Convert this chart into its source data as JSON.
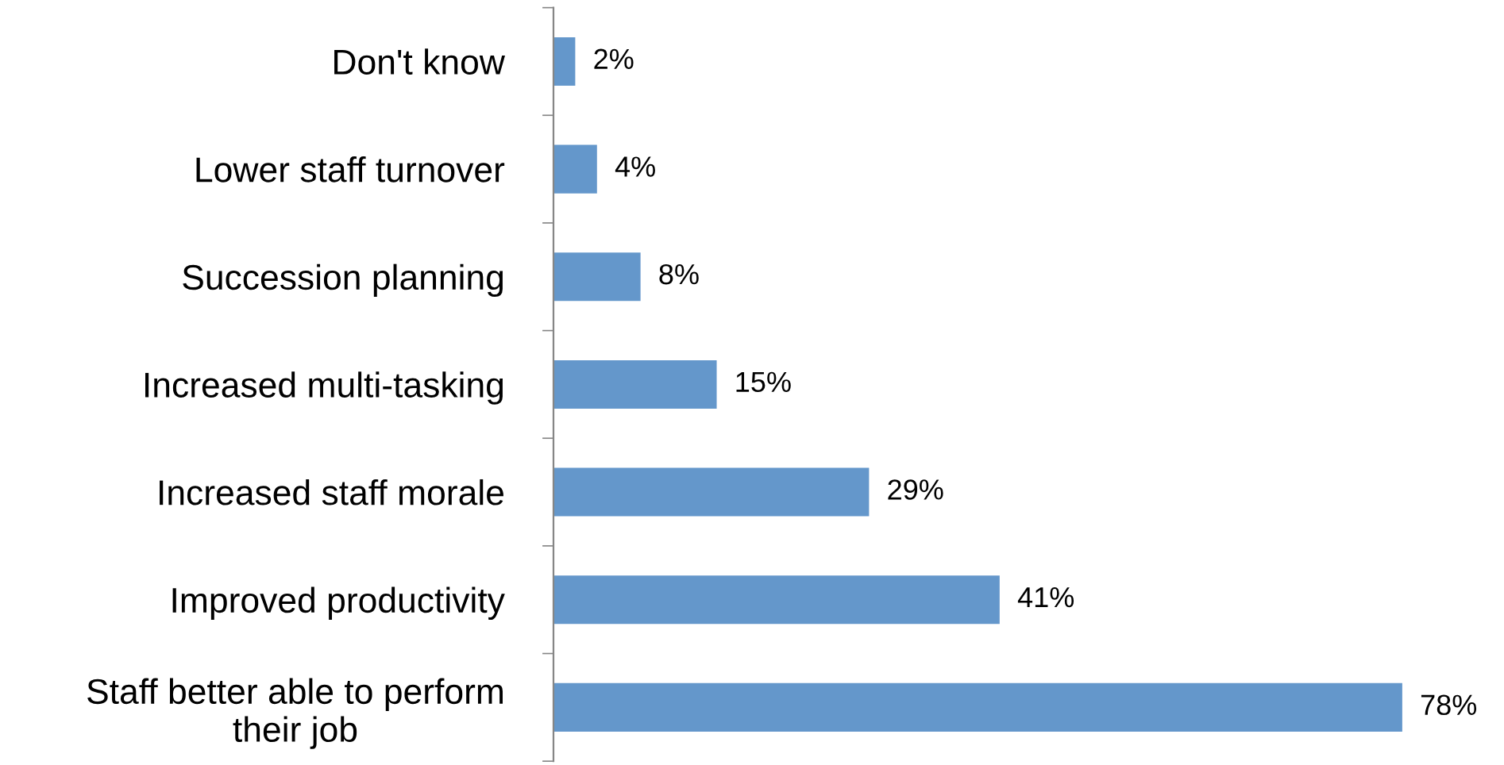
{
  "chart_data": {
    "type": "bar",
    "orientation": "horizontal",
    "categories": [
      "Don't know",
      "Lower staff turnover",
      "Succession planning",
      "Increased multi-tasking",
      "Increased staff morale",
      "Improved productivity",
      "Staff better able to perform\ntheir job"
    ],
    "values": [
      2,
      4,
      8,
      15,
      29,
      41,
      78
    ],
    "value_labels": [
      "2%",
      "4%",
      "8%",
      "15%",
      "29%",
      "41%",
      "78%"
    ],
    "color": "#6497cb",
    "grid": false,
    "legend": false
  }
}
